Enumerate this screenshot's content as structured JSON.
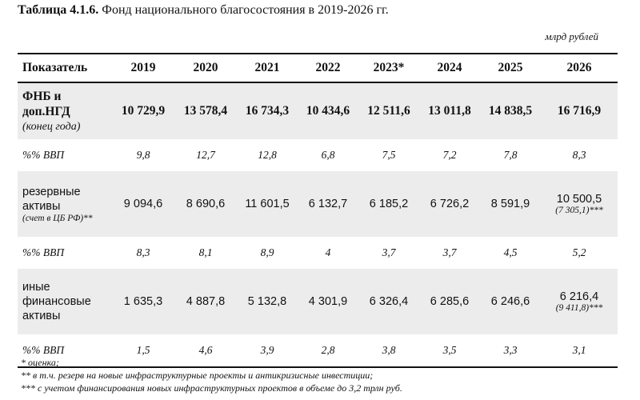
{
  "caption": {
    "lead": "Таблица 4.1.6.",
    "title": "Фонд национального благосостояния в 2019-2026 гг."
  },
  "units": "млрд рублей",
  "table": {
    "header": {
      "label": "Показатель",
      "years": [
        "2019",
        "2020",
        "2021",
        "2022",
        "2023*",
        "2024",
        "2025",
        "2026"
      ]
    },
    "fnb": {
      "label_line1": "ФНБ и",
      "label_line2": "доп.НГД",
      "label_sub": "(конец года)",
      "values": [
        "10 729,9",
        "13 578,4",
        "16 734,3",
        "10 434,6",
        "12 511,6",
        "13 011,8",
        "14 838,5",
        "16 716,9"
      ]
    },
    "fnb_pct": {
      "label": "%% ВВП",
      "values": [
        "9,8",
        "12,7",
        "12,8",
        "6,8",
        "7,5",
        "7,2",
        "7,8",
        "8,3"
      ]
    },
    "reserve": {
      "label_line1": "резервные",
      "label_line2": "активы",
      "label_sub": "(счет в ЦБ РФ)**",
      "values": [
        "9 094,6",
        "8 690,6",
        "11 601,5",
        "6 132,7",
        "6 185,2",
        "6 726,2",
        "8 591,9",
        "10 500,5"
      ],
      "last_note": "(7 305,1)***"
    },
    "reserve_pct": {
      "label": "%% ВВП",
      "values": [
        "8,3",
        "8,1",
        "8,9",
        "4",
        "3,7",
        "3,7",
        "4,5",
        "5,2"
      ]
    },
    "other": {
      "label_line1": "иные",
      "label_line2": "финансовые",
      "label_line3": "активы",
      "values": [
        "1 635,3",
        "4 887,8",
        "5 132,8",
        "4 301,9",
        "6 326,4",
        "6 285,6",
        "6 246,6",
        "6 216,4"
      ],
      "last_note": "(9 411,8)***"
    },
    "other_pct": {
      "label": "%% ВВП",
      "values": [
        "1,5",
        "4,6",
        "3,9",
        "2,8",
        "3,8",
        "3,5",
        "3,3",
        "3,1"
      ]
    }
  },
  "footnotes": [
    "* оценка;",
    "** в т.ч. резерв на новые инфраструктурные проекты и антикризисные инвестиции;",
    "*** с учетом финансирования новых инфраструктурных проектов в объеме до 3,2 трлн руб."
  ]
}
